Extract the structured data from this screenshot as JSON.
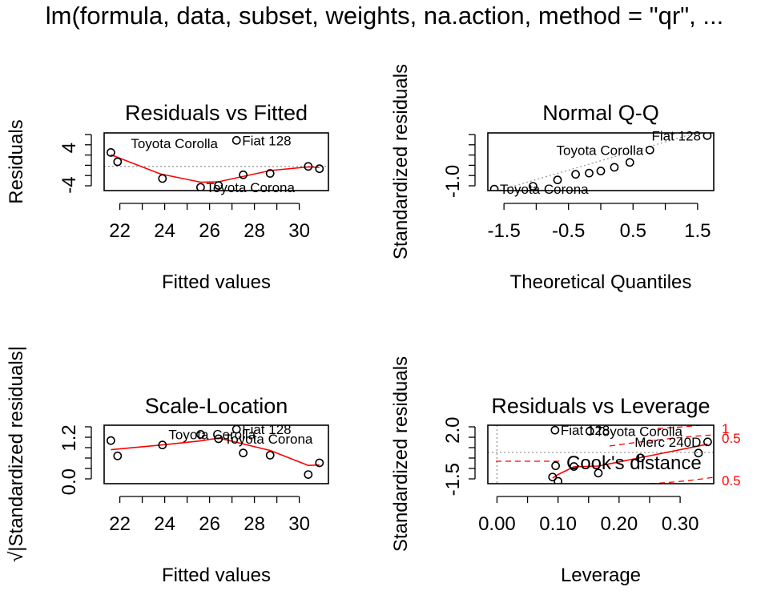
{
  "figure": {
    "supertitle": "lm(formula, data, subset, weights, na.action, method = \"qr\", ..."
  },
  "colors": {
    "point": "#000000",
    "smooth": "#ff0000",
    "reference": "#999999",
    "cook": "#ff0000"
  },
  "chart_data": [
    {
      "id": "residuals-vs-fitted",
      "type": "scatter",
      "title": "Residuals vs Fitted",
      "xlabel": "Fitted values",
      "ylabel": "Residuals",
      "xlim": [
        21.3,
        31.3
      ],
      "ylim": [
        -5.2,
        7.2
      ],
      "xticks": [
        22,
        24,
        26,
        28,
        30
      ],
      "yticks": [
        -4,
        4
      ],
      "points": [
        {
          "x": 21.6,
          "y": 3.0
        },
        {
          "x": 21.9,
          "y": 1.0
        },
        {
          "x": 23.9,
          "y": -2.6
        },
        {
          "x": 25.6,
          "y": -4.5
        },
        {
          "x": 26.4,
          "y": -4.1
        },
        {
          "x": 27.2,
          "y": 5.6
        },
        {
          "x": 27.5,
          "y": -1.8
        },
        {
          "x": 28.7,
          "y": -1.5
        },
        {
          "x": 30.4,
          "y": 0.0
        },
        {
          "x": 30.9,
          "y": -0.5
        }
      ],
      "smooth": [
        {
          "x": 21.6,
          "y": 2.5
        },
        {
          "x": 23.8,
          "y": -1.6
        },
        {
          "x": 25.6,
          "y": -3.4
        },
        {
          "x": 26.4,
          "y": -3.3
        },
        {
          "x": 28.7,
          "y": -0.9
        },
        {
          "x": 30.4,
          "y": -0.1
        },
        {
          "x": 30.9,
          "y": -0.2
        }
      ],
      "reference_h": 0,
      "annotations": [
        {
          "text": "Toyota Corolla",
          "x": 26.8,
          "y": 5.0
        },
        {
          "text": "Fiat 128",
          "x": 27.2,
          "y": 5.6
        },
        {
          "text": "Toyota Corona",
          "x": 25.6,
          "y": -4.5
        }
      ]
    },
    {
      "id": "normal-qq",
      "type": "scatter",
      "title": "Normal Q-Q",
      "xlabel": "Theoretical Quantiles",
      "ylabel": "Standardized residuals",
      "xlim": [
        -1.75,
        1.75
      ],
      "ylim": [
        -1.45,
        1.35
      ],
      "xticks": [
        -1.5,
        -0.5,
        0.5,
        1.5
      ],
      "xtick_labels": [
        "-1.5",
        "-0.5",
        "0.5",
        "1.5"
      ],
      "yticks": [
        -1.0
      ],
      "ytick_labels": [
        "-1.0"
      ],
      "points": [
        {
          "x": -1.65,
          "y": -1.38
        },
        {
          "x": -1.05,
          "y": -1.24
        },
        {
          "x": -0.67,
          "y": -0.93
        },
        {
          "x": -0.39,
          "y": -0.66
        },
        {
          "x": -0.18,
          "y": -0.6
        },
        {
          "x": 0.0,
          "y": -0.5
        },
        {
          "x": 0.21,
          "y": -0.32
        },
        {
          "x": 0.45,
          "y": -0.08
        },
        {
          "x": 0.76,
          "y": 0.52
        },
        {
          "x": 1.65,
          "y": 1.22
        }
      ],
      "reference_line": [
        {
          "x": -1.75,
          "y": -1.6
        },
        {
          "x": 1.75,
          "y": 1.6
        }
      ],
      "annotations": [
        {
          "text": "Toyota Corolla",
          "x": 0.76,
          "y": 0.52
        },
        {
          "text": "Fiat 128",
          "x": 1.65,
          "y": 1.22
        },
        {
          "text": "Toyota Corona",
          "x": -1.65,
          "y": -1.38
        }
      ]
    },
    {
      "id": "scale-location",
      "type": "scatter",
      "title": "Scale-Location",
      "xlabel": "Fitted values",
      "ylabel": "√|Standardized residuals|",
      "xlim": [
        21.3,
        31.3
      ],
      "ylim": [
        -0.05,
        1.55
      ],
      "xticks": [
        22,
        24,
        26,
        28,
        30
      ],
      "yticks": [
        0.0,
        1.2
      ],
      "ytick_labels": [
        "0.0",
        "1.2"
      ],
      "points": [
        {
          "x": 21.6,
          "y": 1.13
        },
        {
          "x": 21.9,
          "y": 0.71
        },
        {
          "x": 23.9,
          "y": 1.01
        },
        {
          "x": 25.6,
          "y": 1.3
        },
        {
          "x": 26.4,
          "y": 1.18
        },
        {
          "x": 27.2,
          "y": 1.44
        },
        {
          "x": 27.5,
          "y": 0.79
        },
        {
          "x": 28.7,
          "y": 0.73
        },
        {
          "x": 30.4,
          "y": 0.2
        },
        {
          "x": 30.9,
          "y": 0.52
        }
      ],
      "smooth": [
        {
          "x": 21.6,
          "y": 0.88
        },
        {
          "x": 23.9,
          "y": 1.01
        },
        {
          "x": 25.6,
          "y": 1.12
        },
        {
          "x": 26.4,
          "y": 1.2
        },
        {
          "x": 28.7,
          "y": 0.86
        },
        {
          "x": 30.4,
          "y": 0.45
        },
        {
          "x": 30.9,
          "y": 0.46
        }
      ],
      "annotations": [
        {
          "text": "Toyota Corolla",
          "x": 25.6,
          "y": 1.3
        },
        {
          "text": "Fiat 128",
          "x": 27.2,
          "y": 1.44
        },
        {
          "text": "Toyota Corona",
          "x": 26.4,
          "y": 1.18
        }
      ]
    },
    {
      "id": "residuals-vs-leverage",
      "type": "scatter",
      "title": "Residuals vs Leverage",
      "xlabel": "Leverage",
      "ylabel": "Standardized residuals",
      "xlim": [
        -0.015,
        0.355
      ],
      "ylim": [
        -1.8,
        2.35
      ],
      "xticks": [
        0.0,
        0.1,
        0.2,
        0.3
      ],
      "xtick_labels": [
        "0.00",
        "0.10",
        "0.20",
        "0.30"
      ],
      "yticks": [
        -1.5,
        2.0
      ],
      "ytick_labels": [
        "-1.5",
        "2.0"
      ],
      "points": [
        {
          "x": 0.091,
          "y": -1.33
        },
        {
          "x": 0.096,
          "y": -0.53
        },
        {
          "x": 0.1,
          "y": -1.63
        },
        {
          "x": 0.126,
          "y": -0.58
        },
        {
          "x": 0.166,
          "y": -1.05
        },
        {
          "x": 0.095,
          "y": 2.0
        },
        {
          "x": 0.152,
          "y": 1.93
        },
        {
          "x": 0.235,
          "y": 0.03
        },
        {
          "x": 0.33,
          "y": 0.37
        },
        {
          "x": 0.345,
          "y": 1.17
        }
      ],
      "smooth": [
        {
          "x": 0.091,
          "y": -1.4
        },
        {
          "x": 0.1,
          "y": -1.15
        },
        {
          "x": 0.126,
          "y": -0.6
        },
        {
          "x": 0.166,
          "y": -0.55
        },
        {
          "x": 0.235,
          "y": 0.05
        },
        {
          "x": 0.345,
          "y": 1.0
        }
      ],
      "cook_levels": [
        "1",
        "0.5",
        "0.5"
      ],
      "cook_legend": "Cook's distance",
      "annotations": [
        {
          "text": "Fiat 128",
          "x": 0.095,
          "y": 2.0
        },
        {
          "text": "Toyota Corolla",
          "x": 0.152,
          "y": 1.93
        },
        {
          "text": "Merc 240D",
          "x": 0.345,
          "y": 1.17
        }
      ]
    }
  ]
}
